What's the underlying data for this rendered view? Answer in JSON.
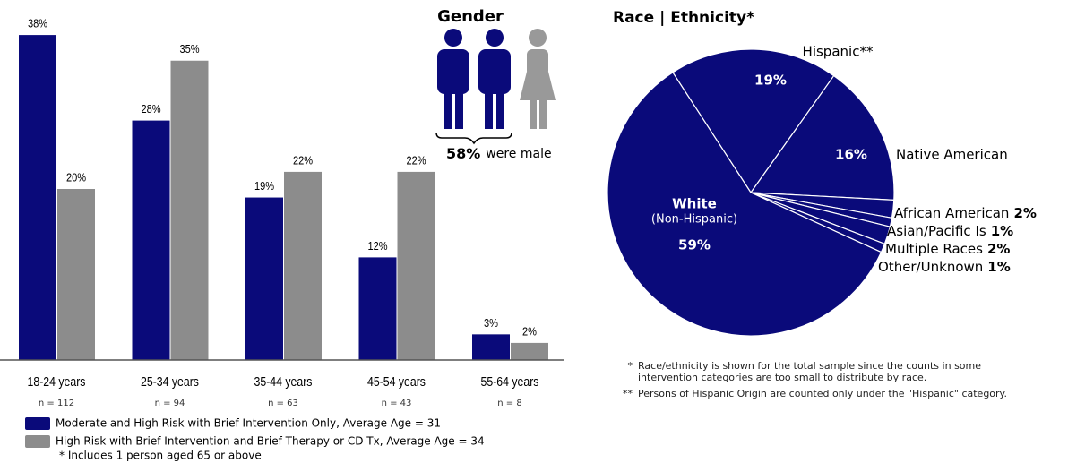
{
  "chart_data": [
    {
      "type": "bar",
      "categories": [
        "18-24 years",
        "25-34 years",
        "35-44 years",
        "45-54 years",
        "55-64 years"
      ],
      "category_notes": [
        "n = 112",
        "n = 94",
        "n = 63",
        "n = 43",
        "n = 8"
      ],
      "series": [
        {
          "name": "Moderate and High Risk with Brief Intervention Only, Average Age = 31",
          "color": "#0a0a7a",
          "values": [
            38,
            28,
            19,
            12,
            3
          ],
          "value_labels": [
            "38%",
            "28%",
            "19%",
            "12%",
            "3%"
          ]
        },
        {
          "name": "High Risk with Brief Intervention and Brief Therapy or CD Tx, Average Age = 34",
          "color": "#8c8c8c",
          "values": [
            20,
            35,
            22,
            22,
            2
          ],
          "value_labels": [
            "20%",
            "35%",
            "22%",
            "22%",
            "2%"
          ]
        }
      ],
      "ylim": [
        0,
        40
      ],
      "note": "* Includes 1 person aged 65 or above"
    },
    {
      "type": "pie",
      "title": "Race | Ethnicity*",
      "color": "#0a0a7a",
      "categories": [
        "Hispanic**",
        "Native American",
        "African American",
        "Asian/Pacific Is",
        "Multiple Races",
        "Other/Unknown",
        "White"
      ],
      "category_note": "(Non-Hispanic)",
      "values": [
        19,
        16,
        2,
        1,
        2,
        1,
        59
      ],
      "value_labels": [
        "19%",
        "16%",
        "2%",
        "1%",
        "2%",
        "1%",
        "59%"
      ],
      "footnotes": [
        {
          "mark": "*",
          "text": "Race/ethnicity is shown for the total sample since the counts in some intervention categories are too small to distribute by race."
        },
        {
          "mark": "**",
          "text": "Persons of Hispanic Origin are counted only under the \"Hispanic\" category."
        }
      ]
    }
  ],
  "gender": {
    "title": "Gender",
    "value_label": "58%",
    "text": "were male"
  }
}
